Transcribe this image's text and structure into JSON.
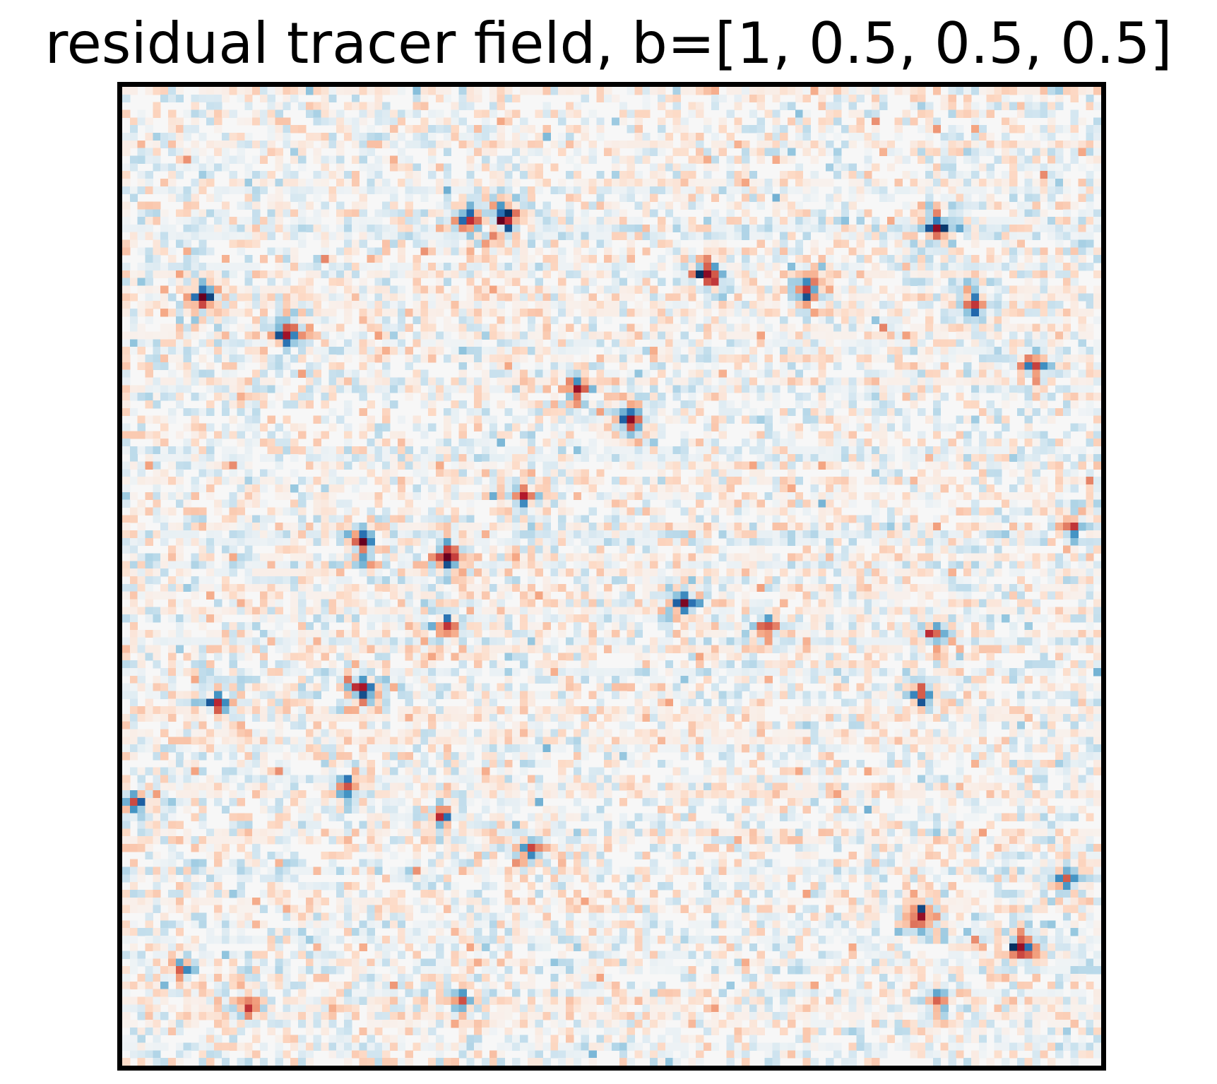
{
  "chart_data": {
    "type": "heatmap",
    "title": "residual tracer field, b=[1, 0.5, 0.5, 0.5]",
    "xlabel": "",
    "ylabel": "",
    "axis_ticks": false,
    "grid": false,
    "legend": "none",
    "colormap": "RdBu_r",
    "value_range": [
      -1,
      1
    ],
    "resolution": [
      128,
      128
    ],
    "background_value": 0,
    "colors": {
      "negative_max": "#053061",
      "negative_mid": "#4393c3",
      "neutral": "#f7f7f7",
      "positive_mid": "#d6604d",
      "positive_max": "#67001f",
      "frame": "#000000"
    },
    "clusters": [
      {
        "col": 10,
        "row": 27,
        "amp": 1.0
      },
      {
        "col": 21,
        "row": 32,
        "amp": 0.9
      },
      {
        "col": 50,
        "row": 17,
        "amp": 1.0
      },
      {
        "col": 49,
        "row": 16,
        "amp": -0.9
      },
      {
        "col": 45,
        "row": 17,
        "amp": 0.8
      },
      {
        "col": 31,
        "row": 59,
        "amp": 1.0
      },
      {
        "col": 42,
        "row": 61,
        "amp": 0.9
      },
      {
        "col": 31,
        "row": 78,
        "amp": 0.9
      },
      {
        "col": 12,
        "row": 80,
        "amp": 0.8
      },
      {
        "col": 117,
        "row": 112,
        "amp": 1.0
      },
      {
        "col": 104,
        "row": 108,
        "amp": 0.9
      },
      {
        "col": 106,
        "row": 18,
        "amp": 0.9
      },
      {
        "col": 111,
        "row": 28,
        "amp": 0.8
      },
      {
        "col": 89,
        "row": 26,
        "amp": 0.8
      },
      {
        "col": 76,
        "row": 24,
        "amp": 0.9
      },
      {
        "col": 73,
        "row": 67,
        "amp": 0.9
      },
      {
        "col": 66,
        "row": 43,
        "amp": 0.9
      },
      {
        "col": 59,
        "row": 39,
        "amp": 0.8
      },
      {
        "col": 41,
        "row": 95,
        "amp": 0.7
      },
      {
        "col": 29,
        "row": 91,
        "amp": 0.6
      },
      {
        "col": 1,
        "row": 93,
        "amp": 0.6
      },
      {
        "col": 42,
        "row": 70,
        "amp": 0.7
      },
      {
        "col": 52,
        "row": 53,
        "amp": 0.7
      },
      {
        "col": 16,
        "row": 120,
        "amp": 0.7
      },
      {
        "col": 7,
        "row": 115,
        "amp": 0.6
      },
      {
        "col": 84,
        "row": 70,
        "amp": 0.6
      },
      {
        "col": 124,
        "row": 57,
        "amp": 0.6
      },
      {
        "col": 106,
        "row": 71,
        "amp": 0.5
      },
      {
        "col": 104,
        "row": 79,
        "amp": 0.6
      },
      {
        "col": 123,
        "row": 103,
        "amp": 0.6
      },
      {
        "col": 106,
        "row": 119,
        "amp": 0.5
      },
      {
        "col": 44,
        "row": 119,
        "amp": 0.5
      },
      {
        "col": 53,
        "row": 99,
        "amp": 0.6
      },
      {
        "col": 119,
        "row": 36,
        "amp": 0.6
      }
    ]
  }
}
